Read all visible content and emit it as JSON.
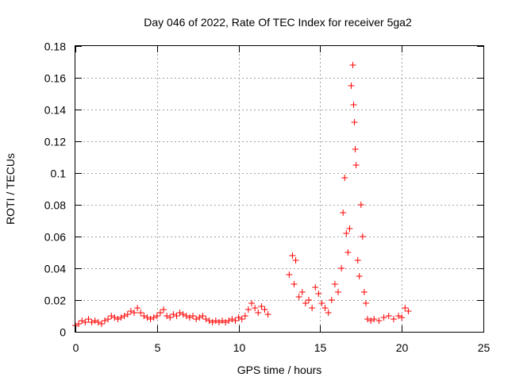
{
  "chart_data": {
    "type": "scatter",
    "title": "Day 046 of 2022, Rate Of TEC Index for receiver 5ga2",
    "xlabel": "GPS time / hours",
    "ylabel": "ROTI / TECUs",
    "xlim": [
      0,
      25
    ],
    "ylim": [
      0,
      0.18
    ],
    "xticks": [
      0,
      5,
      10,
      15,
      20,
      25
    ],
    "xtick_labels": [
      "0",
      "5",
      "10",
      "15",
      "20",
      "25"
    ],
    "yticks": [
      0,
      0.02,
      0.04,
      0.06,
      0.08,
      0.1,
      0.12,
      0.14,
      0.16,
      0.18
    ],
    "ytick_labels": [
      "0",
      "0.02",
      "0.04",
      "0.06",
      "0.08",
      "0.1",
      "0.12",
      "0.14",
      "0.16",
      "0.18"
    ],
    "grid": true,
    "marker": "+",
    "series": [
      {
        "name": "ROTI",
        "color": "#ff0000",
        "points": [
          [
            0.0,
            0.004
          ],
          [
            0.2,
            0.005
          ],
          [
            0.4,
            0.007
          ],
          [
            0.6,
            0.006
          ],
          [
            0.8,
            0.008
          ],
          [
            1.0,
            0.006
          ],
          [
            1.2,
            0.007
          ],
          [
            1.4,
            0.006
          ],
          [
            1.6,
            0.005
          ],
          [
            1.8,
            0.007
          ],
          [
            2.0,
            0.008
          ],
          [
            2.2,
            0.01
          ],
          [
            2.4,
            0.009
          ],
          [
            2.6,
            0.008
          ],
          [
            2.8,
            0.009
          ],
          [
            3.0,
            0.01
          ],
          [
            3.2,
            0.011
          ],
          [
            3.4,
            0.013
          ],
          [
            3.6,
            0.012
          ],
          [
            3.8,
            0.015
          ],
          [
            4.0,
            0.012
          ],
          [
            4.2,
            0.01
          ],
          [
            4.4,
            0.009
          ],
          [
            4.6,
            0.008
          ],
          [
            4.8,
            0.009
          ],
          [
            5.0,
            0.01
          ],
          [
            5.2,
            0.012
          ],
          [
            5.4,
            0.014
          ],
          [
            5.6,
            0.01
          ],
          [
            5.8,
            0.009
          ],
          [
            6.0,
            0.011
          ],
          [
            6.2,
            0.01
          ],
          [
            6.4,
            0.012
          ],
          [
            6.6,
            0.011
          ],
          [
            6.8,
            0.01
          ],
          [
            7.0,
            0.009
          ],
          [
            7.2,
            0.01
          ],
          [
            7.4,
            0.008
          ],
          [
            7.6,
            0.009
          ],
          [
            7.8,
            0.01
          ],
          [
            8.0,
            0.008
          ],
          [
            8.2,
            0.007
          ],
          [
            8.4,
            0.006
          ],
          [
            8.6,
            0.007
          ],
          [
            8.8,
            0.006
          ],
          [
            9.0,
            0.007
          ],
          [
            9.2,
            0.006
          ],
          [
            9.4,
            0.007
          ],
          [
            9.6,
            0.008
          ],
          [
            9.8,
            0.007
          ],
          [
            10.0,
            0.009
          ],
          [
            10.2,
            0.008
          ],
          [
            10.4,
            0.01
          ],
          [
            10.6,
            0.014
          ],
          [
            10.8,
            0.018
          ],
          [
            11.0,
            0.015
          ],
          [
            11.2,
            0.012
          ],
          [
            11.4,
            0.016
          ],
          [
            11.6,
            0.014
          ],
          [
            11.8,
            0.011
          ],
          [
            13.1,
            0.036
          ],
          [
            13.3,
            0.048
          ],
          [
            13.4,
            0.03
          ],
          [
            13.5,
            0.045
          ],
          [
            13.7,
            0.022
          ],
          [
            13.9,
            0.025
          ],
          [
            14.1,
            0.018
          ],
          [
            14.3,
            0.02
          ],
          [
            14.5,
            0.015
          ],
          [
            14.7,
            0.028
          ],
          [
            14.9,
            0.024
          ],
          [
            15.1,
            0.018
          ],
          [
            15.3,
            0.015
          ],
          [
            15.5,
            0.012
          ],
          [
            15.7,
            0.02
          ],
          [
            15.9,
            0.03
          ],
          [
            16.1,
            0.025
          ],
          [
            16.3,
            0.04
          ],
          [
            16.4,
            0.075
          ],
          [
            16.5,
            0.097
          ],
          [
            16.6,
            0.062
          ],
          [
            16.7,
            0.05
          ],
          [
            16.8,
            0.065
          ],
          [
            16.9,
            0.155
          ],
          [
            17.0,
            0.168
          ],
          [
            17.05,
            0.143
          ],
          [
            17.1,
            0.132
          ],
          [
            17.15,
            0.115
          ],
          [
            17.2,
            0.105
          ],
          [
            17.3,
            0.045
          ],
          [
            17.4,
            0.035
          ],
          [
            17.5,
            0.08
          ],
          [
            17.6,
            0.06
          ],
          [
            17.7,
            0.025
          ],
          [
            17.8,
            0.018
          ],
          [
            17.9,
            0.008
          ],
          [
            18.1,
            0.007
          ],
          [
            18.3,
            0.008
          ],
          [
            18.6,
            0.007
          ],
          [
            18.9,
            0.009
          ],
          [
            19.2,
            0.01
          ],
          [
            19.5,
            0.008
          ],
          [
            19.8,
            0.01
          ],
          [
            20.0,
            0.009
          ],
          [
            20.2,
            0.015
          ],
          [
            20.4,
            0.013
          ]
        ]
      }
    ]
  }
}
